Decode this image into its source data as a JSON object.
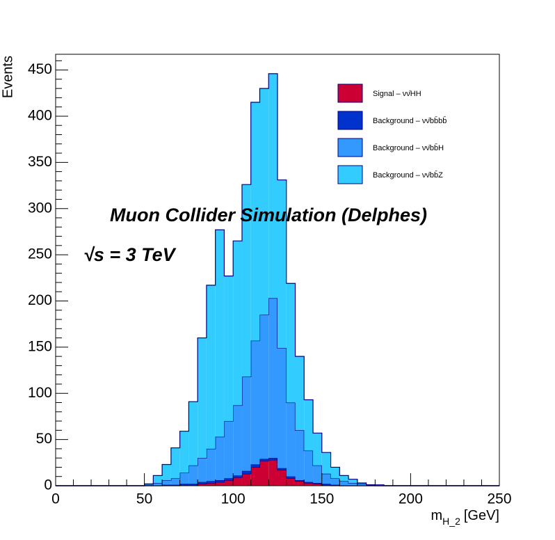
{
  "chart_data": {
    "type": "stacked-histogram",
    "annotations": [
      "Muon Collider Simulation (Delphes)",
      "√s  = 3 TeV"
    ],
    "y_label": "Events",
    "x_label": {
      "main": "m",
      "sub": "H_2",
      "unit": "[GeV]"
    },
    "bins": [
      0,
      5,
      10,
      15,
      20,
      25,
      30,
      35,
      40,
      45,
      50,
      55,
      60,
      65,
      70,
      75,
      80,
      85,
      90,
      95,
      100,
      105,
      110,
      115,
      120,
      125,
      130,
      135,
      140,
      145,
      150,
      155,
      160,
      165,
      170,
      175,
      180,
      185,
      190,
      195,
      200,
      205,
      210,
      215,
      220,
      225,
      230,
      235,
      240,
      245,
      250
    ],
    "series": [
      {
        "name": "Signal – νν̄HH",
        "color": "#cc0033",
        "values": [
          0,
          0,
          0,
          0,
          0,
          0,
          0,
          0,
          0,
          0,
          0,
          0,
          0,
          0,
          1,
          1,
          2,
          3,
          4,
          6,
          9,
          13,
          20,
          27,
          28,
          17,
          8,
          5,
          3,
          2,
          1,
          0,
          0,
          0,
          0,
          0,
          0,
          0,
          0,
          0,
          0,
          0,
          0,
          0,
          0,
          0,
          0,
          0,
          0,
          0
        ]
      },
      {
        "name": "Background – νν̄bb̄bb̄",
        "color": "#0033cc",
        "values": [
          0,
          0,
          0,
          0,
          0,
          0,
          0,
          0,
          0,
          0,
          0,
          0,
          1,
          1,
          1,
          1,
          2,
          2,
          2,
          2,
          2,
          3,
          3,
          2,
          2,
          2,
          2,
          1,
          1,
          1,
          1,
          1,
          0,
          0,
          0,
          0,
          0,
          0,
          0,
          0,
          0,
          0,
          0,
          0,
          0,
          0,
          0,
          0,
          0,
          0
        ]
      },
      {
        "name": "Background – νν̄bb̄H",
        "color": "#3399ff",
        "values": [
          0,
          0,
          0,
          0,
          0,
          0,
          0,
          0,
          0,
          0,
          1,
          3,
          5,
          7,
          12,
          20,
          26,
          35,
          47,
          62,
          76,
          102,
          134,
          156,
          173,
          130,
          80,
          54,
          34,
          19,
          11,
          7,
          5,
          3,
          2,
          1,
          0,
          0,
          0,
          0,
          0,
          0,
          0,
          0,
          0,
          0,
          0,
          0,
          0,
          0
        ]
      },
      {
        "name": "Background – νν̄bb̄Z",
        "color": "#33ccff",
        "values": [
          0,
          0,
          0,
          0,
          0,
          0,
          0,
          0,
          0,
          0,
          1,
          8,
          17,
          33,
          45,
          69,
          130,
          177,
          224,
          157,
          178,
          208,
          258,
          245,
          243,
          182,
          129,
          80,
          55,
          35,
          23,
          12,
          6,
          4,
          1,
          0,
          1,
          0,
          0,
          0,
          0,
          0,
          0,
          0,
          0,
          0,
          0,
          0,
          0,
          0
        ]
      }
    ],
    "xlim": [
      0,
      250
    ],
    "xticks": [
      0,
      50,
      100,
      150,
      200,
      250
    ],
    "xminorticks": [
      10,
      20,
      30,
      40,
      60,
      70,
      80,
      90,
      110,
      120,
      130,
      140,
      160,
      170,
      180,
      190,
      210,
      220,
      230,
      240
    ],
    "ylim": [
      0,
      467
    ],
    "yticks": [
      0,
      50,
      100,
      150,
      200,
      250,
      300,
      350,
      400,
      450
    ],
    "yminorticks": [
      10,
      20,
      30,
      40,
      60,
      70,
      80,
      90,
      110,
      120,
      130,
      140,
      160,
      170,
      180,
      190,
      210,
      220,
      230,
      240,
      260,
      270,
      280,
      290,
      310,
      320,
      330,
      340,
      360,
      370,
      380,
      390,
      410,
      420,
      430,
      440,
      460
    ],
    "legend": "top-right"
  }
}
